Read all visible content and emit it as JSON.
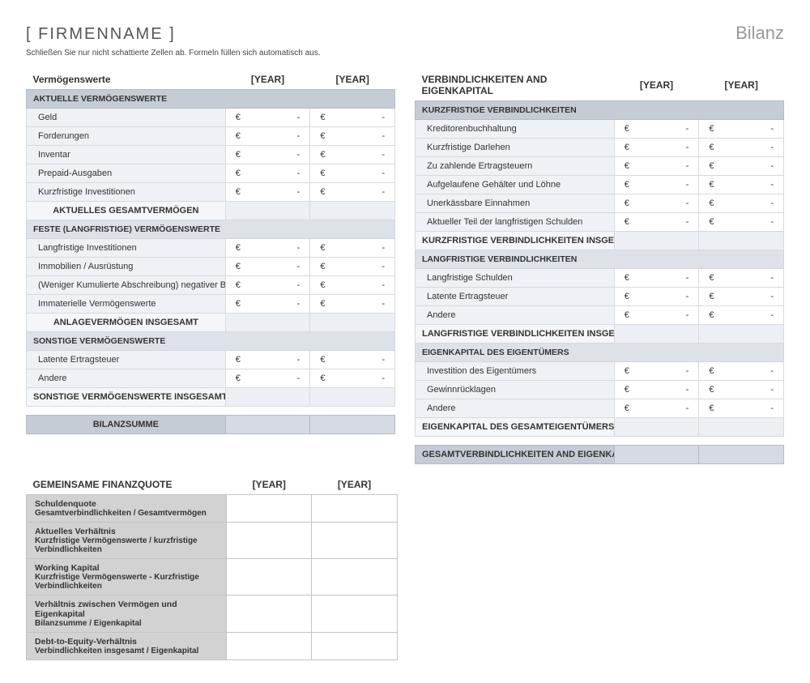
{
  "header": {
    "company": "[ FIRMENNAME ]",
    "doc_title": "Bilanz",
    "instructions": "Schließen Sie nur nicht schattierte Zellen ab.  Formeln füllen sich automatisch aus."
  },
  "year1": "[YEAR]",
  "year2": "[YEAR]",
  "currency": "€",
  "dash": "-",
  "left": {
    "title": "Vermögenswerte",
    "g1": {
      "header": "AKTUELLE VERMÖGENSWERTE",
      "r1": "Geld",
      "r2": "Forderungen",
      "r3": "Inventar",
      "r4": "Prepaid-Ausgaben",
      "r5": "Kurzfristige Investitionen",
      "subtotal": "AKTUELLES GESAMTVERMÖGEN"
    },
    "g2": {
      "header": "FESTE (LANGFRISTIGE) VERMÖGENSWERTE",
      "r1": "Langfristige Investitionen",
      "r2": "Immobilien / Ausrüstung",
      "r3": "(Weniger Kumulierte Abschreibung)  negativer Betrag",
      "r4": "Immaterielle Vermögenswerte",
      "subtotal": "ANLAGEVERMÖGEN INSGESAMT"
    },
    "g3": {
      "header": "SONSTIGE VERMÖGENSWERTE",
      "r1": "Latente Ertragsteuer",
      "r2": "Andere",
      "subtotal": "SONSTIGE VERMÖGENSWERTE INSGESAMT"
    },
    "grand": "BILANZSUMME"
  },
  "right": {
    "title": "VERBINDLICHKEITEN AND EIGENKAPITAL",
    "g1": {
      "header": "KURZFRISTIGE VERBINDLICHKEITEN",
      "r1": "Kreditorenbuchhaltung",
      "r2": "Kurzfristige Darlehen",
      "r3": "Zu zahlende Ertragsteuern",
      "r4": "Aufgelaufene Gehälter und Löhne",
      "r5": "Unerkässbare Einnahmen",
      "r6": "Aktueller Teil der langfristigen Schulden",
      "subtotal": "KURZFRISTIGE VERBINDLICHKEITEN INSGESAMT"
    },
    "g2": {
      "header": "LANGFRISTIGE VERBINDLICHKEITEN",
      "r1": "Langfristige Schulden",
      "r2": "Latente Ertragsteuer",
      "r3": "Andere",
      "subtotal": "LANGFRISTIGE VERBINDLICHKEITEN INSGESAMT"
    },
    "g3": {
      "header": "EIGENKAPITAL DES EIGENTÜMERS",
      "r1": "Investition des Eigentümers",
      "r2": "Gewinnrücklagen",
      "r3": "Andere",
      "subtotal": "EIGENKAPITAL DES GESAMTEIGENTÜMERS"
    },
    "grand": "GESAMTVERBINDLICHKEITEN AND EIGENKAPITAL DES EIGENTÜMERS"
  },
  "ratios": {
    "title": "GEMEINSAME FINANZQUOTE",
    "r1": {
      "t": "Schuldenquote",
      "s": "Gesamtverbindlichkeiten / Gesamtvermögen"
    },
    "r2": {
      "t": "Aktuelles Verhältnis",
      "s": "Kurzfristige Vermögenswerte / kurzfristige Verbindlichkeiten"
    },
    "r3": {
      "t": "Working Kapital",
      "s": "Kurzfristige Vermögenswerte - Kurzfristige Verbindlichkeiten"
    },
    "r4": {
      "t": "Verhältnis zwischen Vermögen und Eigenkapital",
      "s": "Bilanzsumme / Eigenkapital"
    },
    "r5": {
      "t": "Debt-to-Equity-Verhältnis",
      "s": "Verbindlichkeiten insgesamt / Eigenkapital"
    }
  },
  "colors": {
    "group_header_bg": "#c6ccd6",
    "group_header_light_bg": "#dde2e9",
    "row_label_bg": "#eef1f5",
    "border": "#d6dadf",
    "ratio_bg": "#d2d2d2"
  }
}
